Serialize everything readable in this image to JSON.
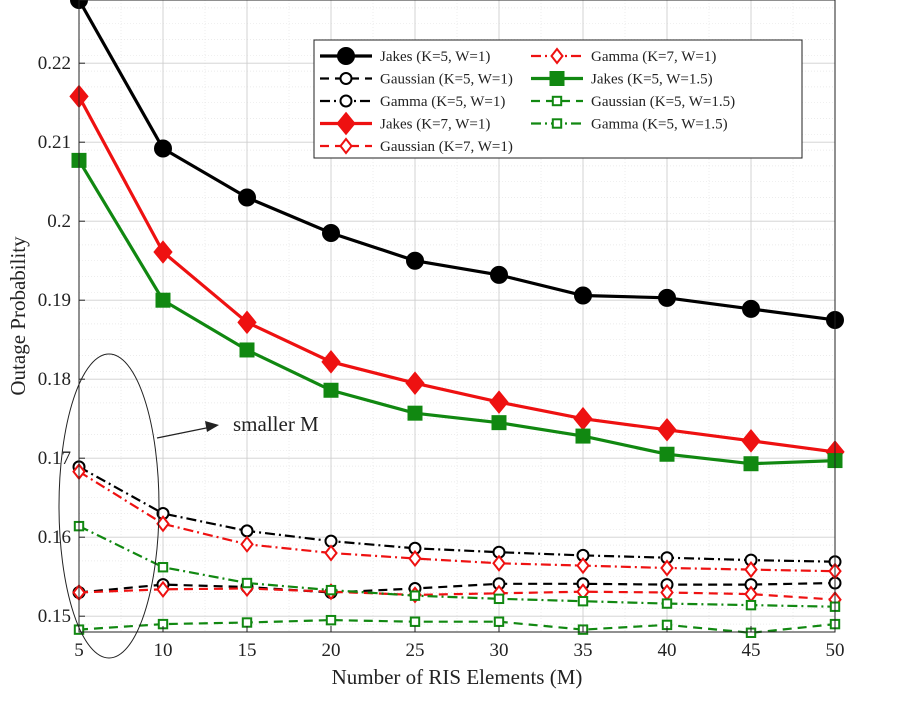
{
  "chart_data": {
    "type": "line",
    "xlabel": "Number of RIS Elements (M)",
    "ylabel": "Outage Probability",
    "xlim": [
      5,
      50
    ],
    "ylim": [
      0.148,
      0.228
    ],
    "xticks": [
      5,
      10,
      15,
      20,
      25,
      30,
      35,
      40,
      45,
      50
    ],
    "yticks": [
      0.15,
      0.16,
      0.17,
      0.18,
      0.19,
      0.2,
      0.21,
      0.22
    ],
    "ytick_labels": [
      "0.15",
      "0.16",
      "0.17",
      "0.18",
      "0.19",
      "0.2",
      "0.21",
      "0.22"
    ],
    "grid": true,
    "legend_position": "top-right",
    "x": [
      5,
      10,
      15,
      20,
      25,
      30,
      35,
      40,
      45,
      50
    ],
    "series": [
      {
        "name": "Jakes (K=5, W=1)",
        "color": "#000000",
        "line": "solid",
        "marker": "circle-filled",
        "values": [
          0.228,
          0.2092,
          0.203,
          0.1985,
          0.195,
          0.1932,
          0.1906,
          0.1903,
          0.1889,
          0.1875
        ]
      },
      {
        "name": "Gaussian (K=5, W=1)",
        "color": "#000000",
        "line": "dashed",
        "marker": "circle-open",
        "values": [
          0.153,
          0.154,
          0.1537,
          0.153,
          0.1535,
          0.1541,
          0.1541,
          0.154,
          0.154,
          0.1542
        ]
      },
      {
        "name": "Gamma (K=5, W=1)",
        "color": "#000000",
        "line": "dashdot",
        "marker": "circle-open",
        "values": [
          0.1689,
          0.163,
          0.1608,
          0.1595,
          0.1586,
          0.1581,
          0.1577,
          0.1574,
          0.1571,
          0.1569
        ]
      },
      {
        "name": "Jakes (K=7, W=1)",
        "color": "#ee1111",
        "line": "solid",
        "marker": "diamond-filled",
        "values": [
          0.2158,
          0.1961,
          0.1872,
          0.1822,
          0.1795,
          0.1771,
          0.175,
          0.1736,
          0.1722,
          0.1708
        ]
      },
      {
        "name": "Gaussian (K=7, W=1)",
        "color": "#ee1111",
        "line": "dashed",
        "marker": "diamond-open",
        "values": [
          0.153,
          0.1534,
          0.1535,
          0.1531,
          0.1527,
          0.1529,
          0.1531,
          0.153,
          0.1528,
          0.1521
        ]
      },
      {
        "name": "Gamma (K=7, W=1)",
        "color": "#ee1111",
        "line": "dashdot",
        "marker": "diamond-open",
        "values": [
          0.1683,
          0.1617,
          0.1591,
          0.158,
          0.1573,
          0.1567,
          0.1564,
          0.1561,
          0.1559,
          0.1557
        ]
      },
      {
        "name": "Jakes (K=5, W=1.5)",
        "color": "#118811",
        "line": "solid",
        "marker": "square-filled",
        "values": [
          0.2077,
          0.19,
          0.1837,
          0.1786,
          0.1757,
          0.1745,
          0.1728,
          0.1705,
          0.1693,
          0.1697
        ]
      },
      {
        "name": "Gaussian (K=5, W=1.5)",
        "color": "#118811",
        "line": "dashed",
        "marker": "square-open",
        "values": [
          0.1483,
          0.149,
          0.1492,
          0.1495,
          0.1493,
          0.1493,
          0.1483,
          0.1489,
          0.1479,
          0.149
        ]
      },
      {
        "name": "Gamma (K=5, W=1.5)",
        "color": "#118811",
        "line": "dashdot",
        "marker": "square-open",
        "values": [
          0.1614,
          0.1562,
          0.1542,
          0.1533,
          0.1526,
          0.1522,
          0.1519,
          0.1516,
          0.1514,
          0.1512
        ]
      }
    ],
    "annotations": [
      {
        "text": "smaller M",
        "shape": "ellipse",
        "arrow": true
      }
    ]
  }
}
